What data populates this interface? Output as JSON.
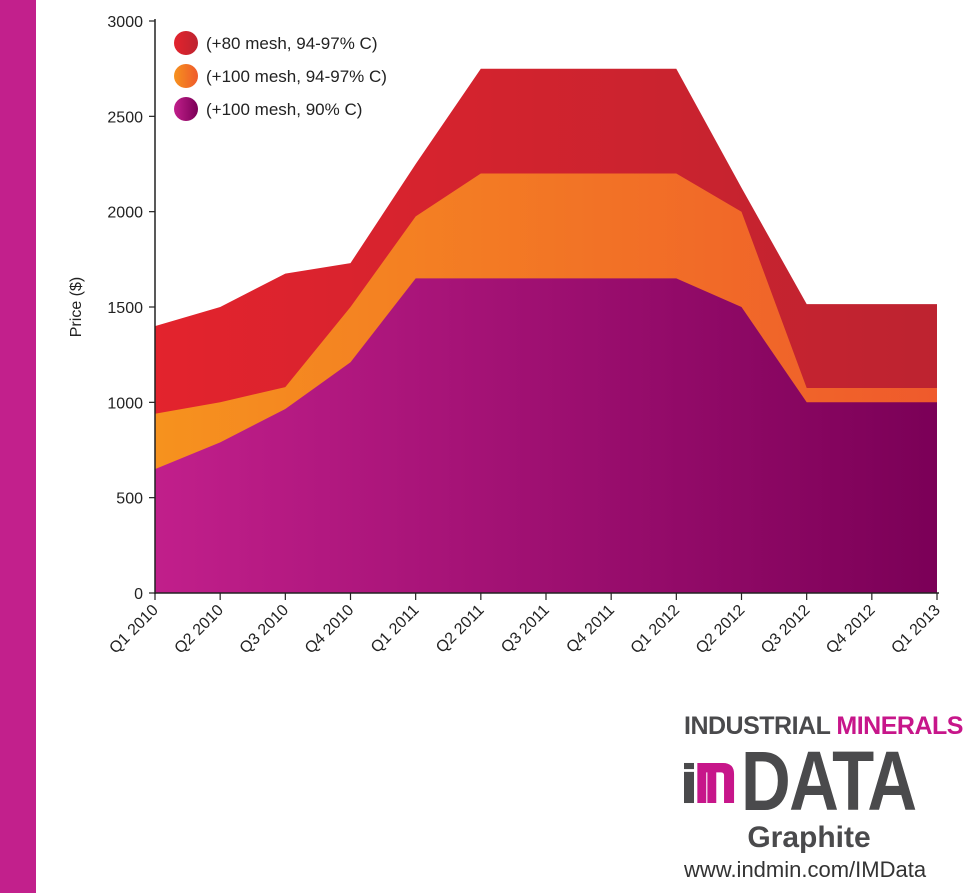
{
  "chart_data": {
    "type": "area",
    "title": "",
    "xlabel": "",
    "ylabel": "Price ($)",
    "ylim": [
      0,
      3000
    ],
    "yticks": [
      0,
      500,
      1000,
      1500,
      2000,
      2500,
      3000
    ],
    "categories": [
      "Q1 2010",
      "Q2 2010",
      "Q3 2010",
      "Q4 2010",
      "Q1 2011",
      "Q2 2011",
      "Q3 2011",
      "Q4 2011",
      "Q1 2012",
      "Q2 2012",
      "Q3 2012",
      "Q4 2012",
      "Q1 2013"
    ],
    "legend_position": "top-left",
    "series": [
      {
        "name": "(+80 mesh, 94-97% C)",
        "color": "#e3232d",
        "color_end": "#bd2330",
        "values": [
          1400,
          1500,
          1675,
          1730,
          2250,
          2750,
          2750,
          2750,
          2750,
          2125,
          1515,
          1515,
          1515
        ]
      },
      {
        "name": "(+100 mesh, 94-97% C)",
        "color": "#f6921e",
        "color_end": "#ef5a2c",
        "values": [
          940,
          1000,
          1080,
          1500,
          1975,
          2200,
          2200,
          2200,
          2200,
          2000,
          1075,
          1075,
          1075
        ]
      },
      {
        "name": "(+100 mesh, 90% C)",
        "color": "#c11f8b",
        "color_end": "#7b0057",
        "values": [
          650,
          790,
          965,
          1210,
          1650,
          1650,
          1650,
          1650,
          1650,
          1500,
          1000,
          1000,
          1000
        ]
      }
    ]
  },
  "logo": {
    "line1a": "INDUSTRIAL",
    "line1b": "MINERALS",
    "mark": "IM",
    "data": "DATA",
    "subtitle": "Graphite",
    "url": "www.indmin.com/IMData"
  }
}
